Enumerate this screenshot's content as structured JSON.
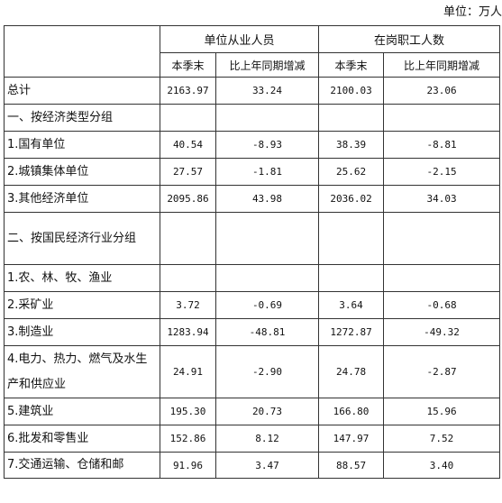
{
  "unit_note": "单位：万人",
  "header": {
    "group1": "单位从业人员",
    "group2": "在岗职工人数",
    "sub": [
      "本季末",
      "比上年同期增减",
      "本季末",
      "比上年同期增减"
    ]
  },
  "rows": [
    {
      "label": "总计",
      "v1": "2163.97",
      "v2": "33.24",
      "v3": "2100.03",
      "v4": "23.06"
    },
    {
      "label": "一、按经济类型分组",
      "v1": "",
      "v2": "",
      "v3": "",
      "v4": ""
    },
    {
      "label": "1.国有单位",
      "v1": "40.54",
      "v2": "-8.93",
      "v3": "38.39",
      "v4": "-8.81"
    },
    {
      "label": "2.城镇集体单位",
      "v1": "27.57",
      "v2": "-1.81",
      "v3": "25.62",
      "v4": "-2.15"
    },
    {
      "label": "3.其他经济单位",
      "v1": "2095.86",
      "v2": "43.98",
      "v3": "2036.02",
      "v4": "34.03"
    },
    {
      "label": "二、按国民经济行业分组",
      "v1": "",
      "v2": "",
      "v3": "",
      "v4": ""
    },
    {
      "label": "1.农、林、牧、渔业",
      "v1": "",
      "v2": "",
      "v3": "",
      "v4": ""
    },
    {
      "label": "2.采矿业",
      "v1": "3.72",
      "v2": "-0.69",
      "v3": "3.64",
      "v4": "-0.68"
    },
    {
      "label": "3.制造业",
      "v1": "1283.94",
      "v2": "-48.81",
      "v3": "1272.87",
      "v4": "-49.32"
    },
    {
      "label": "4.电力、热力、燃气及水生产和供应业",
      "v1": "24.91",
      "v2": "-2.90",
      "v3": "24.78",
      "v4": "-2.87"
    },
    {
      "label": "5.建筑业",
      "v1": "195.30",
      "v2": "20.73",
      "v3": "166.80",
      "v4": "15.96"
    },
    {
      "label": "6.批发和零售业",
      "v1": "152.86",
      "v2": "8.12",
      "v3": "147.97",
      "v4": "7.52"
    },
    {
      "label": "7.交通运输、仓储和邮",
      "v1": "91.96",
      "v2": "3.47",
      "v3": "88.57",
      "v4": "3.40"
    }
  ]
}
